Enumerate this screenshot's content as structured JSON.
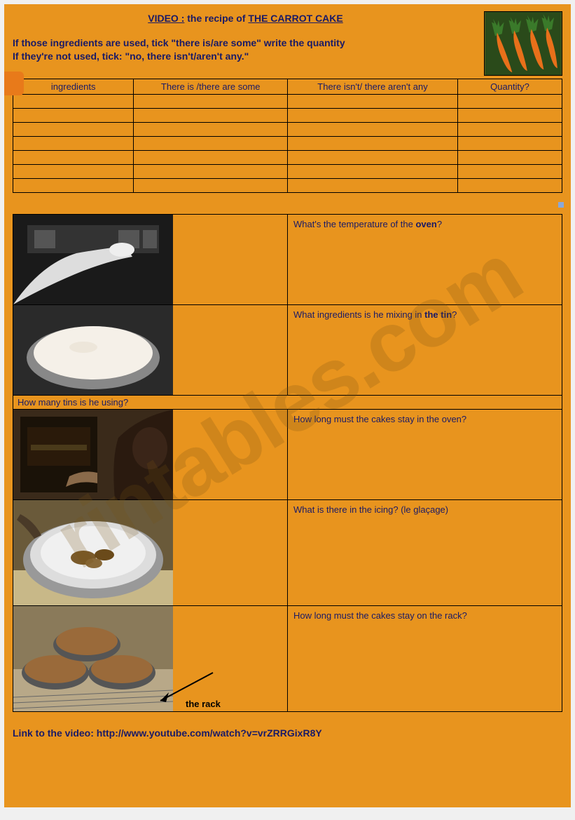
{
  "title": {
    "prefix": "VIDEO :",
    "mid": " the recipe of ",
    "main": "THE CARROT CAKE"
  },
  "instructions": {
    "line1": "If those ingredients are used, tick \"there is/are some\" write the quantity",
    "line2": "If they're not used, tick: \"no, there isn't/aren't any.\""
  },
  "ingredients_table": {
    "columns": [
      "ingredients",
      "There is /there are some",
      "There isn't/ there aren't any",
      "Quantity?"
    ],
    "col_widths_pct": [
      22,
      28,
      31,
      19
    ],
    "row_count": 7
  },
  "questions": [
    {
      "q": "What's the temperature of the ",
      "bold": "oven",
      "tail": "?",
      "caption": ""
    },
    {
      "q": "What ingredients is he mixing in ",
      "bold": "the tin",
      "tail": "?",
      "caption": "How many tins is he using?"
    },
    {
      "q": "How long must the cakes stay in the oven?",
      "bold": "",
      "tail": "",
      "caption": ""
    },
    {
      "q": "What is there in the icing? (le glaçage)",
      "bold": "",
      "tail": "",
      "caption": ""
    },
    {
      "q": "How long must the cakes stay on the rack?",
      "bold": "",
      "tail": "",
      "caption": ""
    }
  ],
  "rack_label": "the rack",
  "link": "Link to the video: http://www.youtube.com/watch?v=vrZRRGixR8Y",
  "watermark": "rintables.com",
  "colors": {
    "page_bg": "#e8941e",
    "text": "#1a1a66",
    "border": "#000000"
  },
  "image_placeholders": {
    "carrot": {
      "w": 112,
      "h": 92
    },
    "step_w": 228,
    "step_h": 128
  }
}
